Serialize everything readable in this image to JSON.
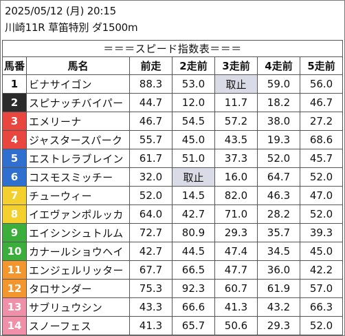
{
  "header": {
    "datetime": "2025/05/12 (月) 20:15",
    "race": "川崎11R 草笛特別 ダ1500m"
  },
  "table": {
    "title": "＝＝＝スピード指数表＝＝＝",
    "columns": [
      "馬番",
      "馬名",
      "前走",
      "2走前",
      "3走前",
      "4走前",
      "5走前"
    ],
    "rows": [
      {
        "num": "1",
        "name": "ビナサイゴン",
        "bg": "#ffffff",
        "fg": "#111111",
        "values": [
          "88.3",
          "53.0",
          "取止",
          "59.0",
          "56.0"
        ]
      },
      {
        "num": "2",
        "name": "スピナッチバイパー",
        "bg": "#2b2b2b",
        "fg": "#ffffff",
        "values": [
          "44.7",
          "12.0",
          "11.7",
          "18.2",
          "46.7"
        ]
      },
      {
        "num": "3",
        "name": "エメリーナ",
        "bg": "#e8463f",
        "fg": "#ffffff",
        "values": [
          "46.7",
          "54.5",
          "57.2",
          "38.0",
          "27.2"
        ]
      },
      {
        "num": "4",
        "name": "ジャスタースパーク",
        "bg": "#e8463f",
        "fg": "#ffffff",
        "values": [
          "55.7",
          "45.0",
          "43.5",
          "19.3",
          "68.6"
        ]
      },
      {
        "num": "5",
        "name": "エストレラブレイン",
        "bg": "#2f6fd0",
        "fg": "#ffffff",
        "values": [
          "61.7",
          "51.0",
          "37.3",
          "52.0",
          "45.7"
        ]
      },
      {
        "num": "6",
        "name": "コスモスミッチー",
        "bg": "#2f6fd0",
        "fg": "#ffffff",
        "values": [
          "32.0",
          "取止",
          "16.0",
          "64.7",
          "52.0"
        ]
      },
      {
        "num": "7",
        "name": "チューウィー",
        "bg": "#f3d02d",
        "fg": "#ffffff",
        "values": [
          "52.0",
          "14.5",
          "82.0",
          "46.3",
          "47.0"
        ]
      },
      {
        "num": "8",
        "name": "イエヴァンポルッカ",
        "bg": "#f3d02d",
        "fg": "#ffffff",
        "values": [
          "64.0",
          "42.7",
          "71.0",
          "28.2",
          "52.0"
        ]
      },
      {
        "num": "9",
        "name": "エイシンシュトルム",
        "bg": "#3cae3c",
        "fg": "#ffffff",
        "values": [
          "72.7",
          "80.9",
          "29.3",
          "35.7",
          "39.3"
        ]
      },
      {
        "num": "10",
        "name": "カナールショウヘイ",
        "bg": "#3cae3c",
        "fg": "#ffffff",
        "values": [
          "42.7",
          "44.5",
          "47.4",
          "34.5",
          "45.0"
        ]
      },
      {
        "num": "11",
        "name": "エンジェルリッター",
        "bg": "#f3962d",
        "fg": "#ffffff",
        "values": [
          "67.7",
          "66.5",
          "47.7",
          "36.0",
          "42.2"
        ]
      },
      {
        "num": "12",
        "name": "タロサンダー",
        "bg": "#f3962d",
        "fg": "#ffffff",
        "values": [
          "75.3",
          "92.3",
          "60.7",
          "61.9",
          "57.0"
        ]
      },
      {
        "num": "13",
        "name": "サブリュウシン",
        "bg": "#f08fa8",
        "fg": "#ffffff",
        "values": [
          "43.3",
          "66.6",
          "41.3",
          "43.2",
          "66.3"
        ]
      },
      {
        "num": "14",
        "name": "スノーフェス",
        "bg": "#f08fa8",
        "fg": "#ffffff",
        "values": [
          "41.3",
          "65.7",
          "50.6",
          "29.3",
          "52.0"
        ]
      }
    ],
    "scratch_text": "取止",
    "scratch_color": "#d9dce6"
  }
}
